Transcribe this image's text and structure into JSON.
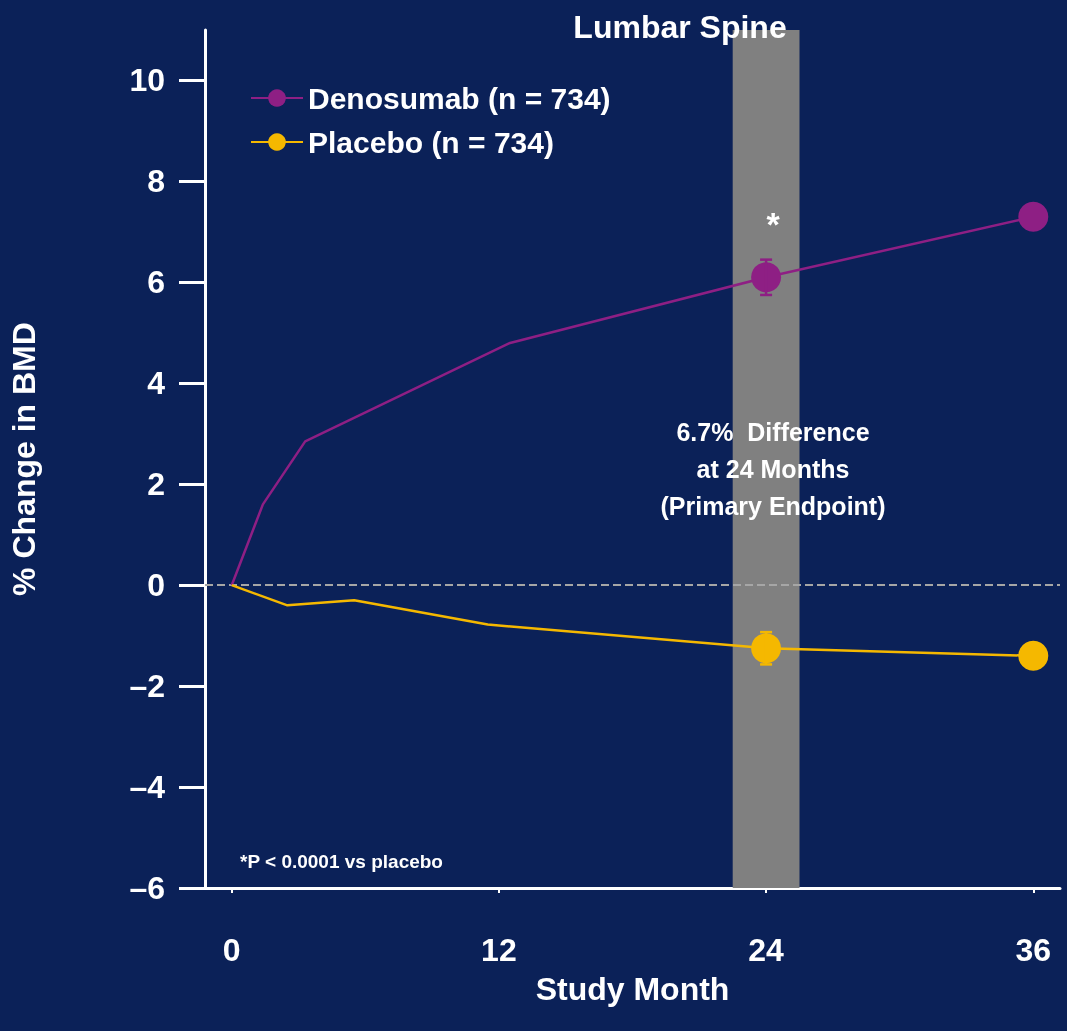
{
  "chart_data": {
    "type": "line",
    "title": "Lumbar Spine",
    "xlabel": "Study Month",
    "ylabel": "% Change in BMD",
    "xlim": [
      -1.2,
      37.2
    ],
    "xticks": [
      0,
      12,
      24,
      36
    ],
    "ylim": [
      -6,
      11
    ],
    "yticks": [
      {
        "value": -6,
        "label": "–6"
      },
      {
        "value": -4,
        "label": "–4"
      },
      {
        "value": -2,
        "label": "–2"
      },
      0,
      2,
      4,
      6,
      8,
      10
    ],
    "series": [
      {
        "name": "Denosumab (n = 734)",
        "color": "#8e1f84",
        "x": [
          0,
          1.4,
          3.3,
          12.5,
          24,
          36
        ],
        "values": [
          0,
          1.6,
          2.85,
          4.8,
          6.1,
          7.3
        ],
        "errors": [
          null,
          null,
          null,
          null,
          0.35,
          0
        ]
      },
      {
        "name": "Placebo (n = 734)",
        "color": "#f5b800",
        "x": [
          0,
          2.5,
          5.5,
          11.5,
          24,
          36
        ],
        "values": [
          0,
          -0.4,
          -0.3,
          -0.78,
          -1.25,
          -1.4
        ],
        "errors": [
          null,
          null,
          null,
          null,
          0.32,
          0
        ]
      }
    ],
    "legend": "top left",
    "grid": false,
    "bands": [
      {
        "axis": "x",
        "from": 22.5,
        "to": 25.5,
        "label": null,
        "color": "#808080"
      }
    ],
    "ref_lines": [
      {
        "axis": "y",
        "value": 0,
        "label": null,
        "color": "#a6a6a6",
        "line_style": "dashed"
      }
    ],
    "annotations": [
      "*",
      "6.7%  Difference\nat 24 Months\n(Primary Endpoint)",
      "*P < 0.0001 vs placebo"
    ]
  }
}
